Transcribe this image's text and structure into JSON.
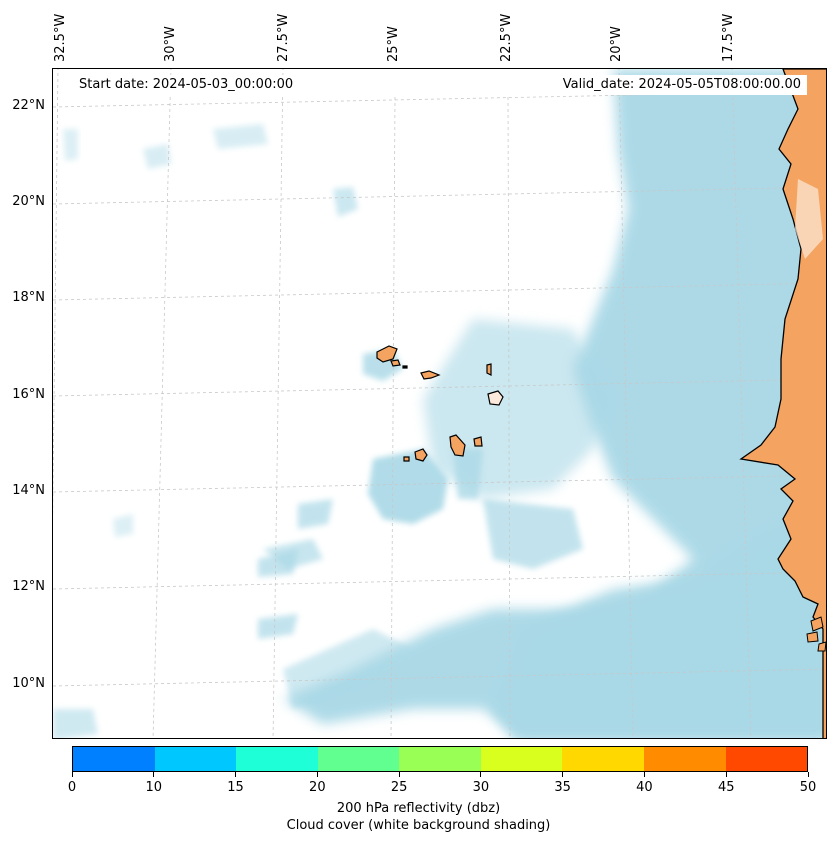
{
  "map": {
    "start_date": "Start date: 2024-05-03_00:00:00",
    "valid_date": "Valid_date: 2024-05-05T08:00:00.00",
    "longitude_labels": [
      "32.5°W",
      "30°W",
      "27.5°W",
      "25°W",
      "22.5°W",
      "20°W",
      "17.5°W"
    ],
    "latitude_labels": [
      "22°N",
      "20°N",
      "18°N",
      "16°N",
      "14°N",
      "12°N",
      "10°N"
    ],
    "land_color": "#f4a460",
    "cloud_color": "#a9d8e6",
    "gridline_color": "#c8c8c8"
  },
  "colorbar": {
    "ticks": [
      "0",
      "10",
      "15",
      "20",
      "25",
      "30",
      "35",
      "40",
      "45",
      "50"
    ],
    "colors": [
      "#0080ff",
      "#00c8ff",
      "#1effd8",
      "#60ff90",
      "#9aff55",
      "#d8ff1e",
      "#ffd800",
      "#ff8c00",
      "#ff4800"
    ],
    "label_line1": "200 hPa reflectivity (dbz)",
    "label_line2": "Cloud cover (white background shading)"
  }
}
